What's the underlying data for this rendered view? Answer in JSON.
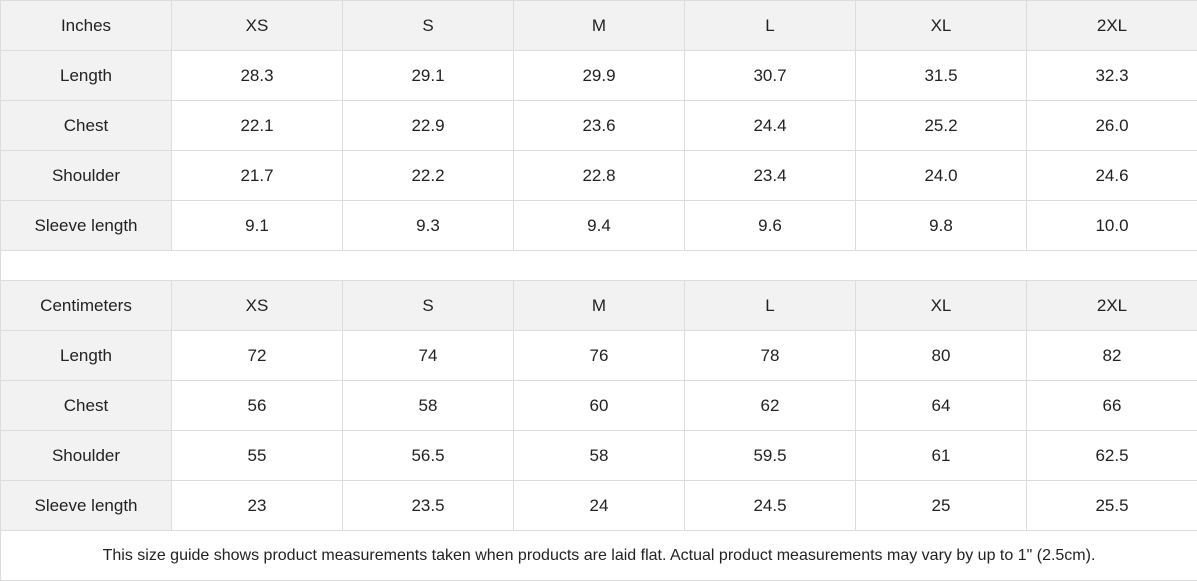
{
  "sizes": [
    "XS",
    "S",
    "M",
    "L",
    "XL",
    "2XL"
  ],
  "inches": {
    "unit_label": "Inches",
    "rows": [
      {
        "label": "Length",
        "values": [
          "28.3",
          "29.1",
          "29.9",
          "30.7",
          "31.5",
          "32.3"
        ]
      },
      {
        "label": "Chest",
        "values": [
          "22.1",
          "22.9",
          "23.6",
          "24.4",
          "25.2",
          "26.0"
        ]
      },
      {
        "label": "Shoulder",
        "values": [
          "21.7",
          "22.2",
          "22.8",
          "23.4",
          "24.0",
          "24.6"
        ]
      },
      {
        "label": "Sleeve length",
        "values": [
          "9.1",
          "9.3",
          "9.4",
          "9.6",
          "9.8",
          "10.0"
        ]
      }
    ]
  },
  "centimeters": {
    "unit_label": "Centimeters",
    "rows": [
      {
        "label": "Length",
        "values": [
          "72",
          "74",
          "76",
          "78",
          "80",
          "82"
        ]
      },
      {
        "label": "Chest",
        "values": [
          "56",
          "58",
          "60",
          "62",
          "64",
          "66"
        ]
      },
      {
        "label": "Shoulder",
        "values": [
          "55",
          "56.5",
          "58",
          "59.5",
          "61",
          "62.5"
        ]
      },
      {
        "label": "Sleeve length",
        "values": [
          "23",
          "23.5",
          "24",
          "24.5",
          "25",
          "25.5"
        ]
      }
    ]
  },
  "note": "This size guide shows product measurements taken when products are laid flat.  Actual product measurements may vary by up to 1\" (2.5cm).",
  "colors": {
    "header_bg": "#f2f2f2",
    "border": "#dcdcdc"
  }
}
